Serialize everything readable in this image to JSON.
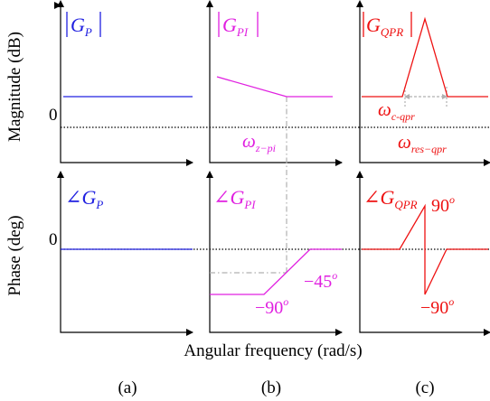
{
  "axis_labels": {
    "magnitude": "Magnitude (dB)",
    "phase": "Phase (deg)",
    "frequency": "Angular frequency (rad/s)",
    "zero_top": "0",
    "zero_bottom": "0"
  },
  "panel_letters": [
    "(a)",
    "(b)",
    "(c)"
  ],
  "magnitude_titles": {
    "p": {
      "main": "G",
      "sub": "P"
    },
    "pi": {
      "main": "G",
      "sub": "PI"
    },
    "qpr": {
      "main": "G",
      "sub": "QPR"
    }
  },
  "phase_titles": {
    "p": {
      "main": "G",
      "sub": "P"
    },
    "pi": {
      "main": "G",
      "sub": "PI"
    },
    "qpr": {
      "main": "G",
      "sub": "QPR"
    }
  },
  "annotations": {
    "omega_zpi": {
      "sym": "ω",
      "sub": "z−pi"
    },
    "omega_cqpr": {
      "sym": "ω",
      "sub": "c-qpr"
    },
    "omega_resqpr": {
      "sym": "ω",
      "sub": "res−qpr"
    },
    "pi_minus90": "−90",
    "pi_minus45": "−45",
    "qpr_plus90": "90",
    "qpr_minus90": "−90",
    "degree": "o",
    "angle": "∠"
  },
  "colors": {
    "p": "#2020e0",
    "pi": "#e020e0",
    "qpr": "#ee1111",
    "axis": "#000000",
    "guide": "#b0b0b0"
  }
}
